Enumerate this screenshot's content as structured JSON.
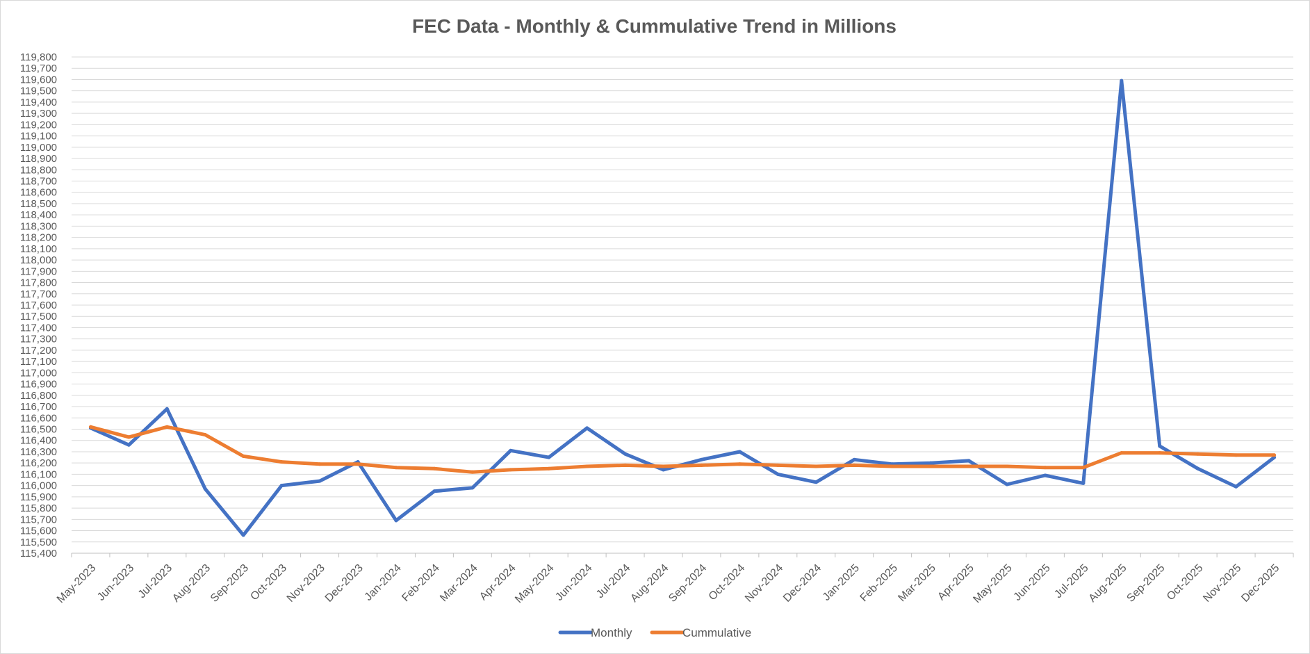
{
  "chart_data": {
    "type": "line",
    "title": "FEC Data - Monthly & Cummulative Trend in Millions",
    "xlabel": "",
    "ylabel": "",
    "ylim": [
      115400,
      119800
    ],
    "ytick_step": 100,
    "grid": true,
    "legend_position": "bottom",
    "categories": [
      "May-2023",
      "Jun-2023",
      "Jul-2023",
      "Aug-2023",
      "Sep-2023",
      "Oct-2023",
      "Nov-2023",
      "Dec-2023",
      "Jan-2024",
      "Feb-2024",
      "Mar-2024",
      "Apr-2024",
      "May-2024",
      "Jun-2024",
      "Jul-2024",
      "Aug-2024",
      "Sep-2024",
      "Oct-2024",
      "Nov-2024",
      "Dec-2024",
      "Jan-2025",
      "Feb-2025",
      "Mar-2025",
      "Apr-2025",
      "May-2025",
      "Jun-2025",
      "Jul-2025",
      "Aug-2025",
      "Sep-2025",
      "Oct-2025",
      "Nov-2025",
      "Dec-2025"
    ],
    "series": [
      {
        "name": "Monthly",
        "color": "#4472c4",
        "values": [
          116510,
          116360,
          116680,
          115970,
          115560,
          116000,
          116040,
          116210,
          115690,
          115950,
          115980,
          116310,
          116250,
          116510,
          116280,
          116140,
          116230,
          116300,
          116100,
          116030,
          116230,
          116190,
          116200,
          116220,
          116010,
          116090,
          116020,
          119590,
          116350,
          116150,
          115990,
          116250
        ]
      },
      {
        "name": "Cummulative",
        "color": "#ed7d31",
        "values": [
          116520,
          116430,
          116520,
          116450,
          116260,
          116210,
          116190,
          116190,
          116160,
          116150,
          116120,
          116140,
          116150,
          116170,
          116180,
          116170,
          116180,
          116190,
          116180,
          116170,
          116180,
          116170,
          116170,
          116170,
          116170,
          116160,
          116160,
          116290,
          116290,
          116280,
          116270,
          116270
        ]
      }
    ]
  }
}
